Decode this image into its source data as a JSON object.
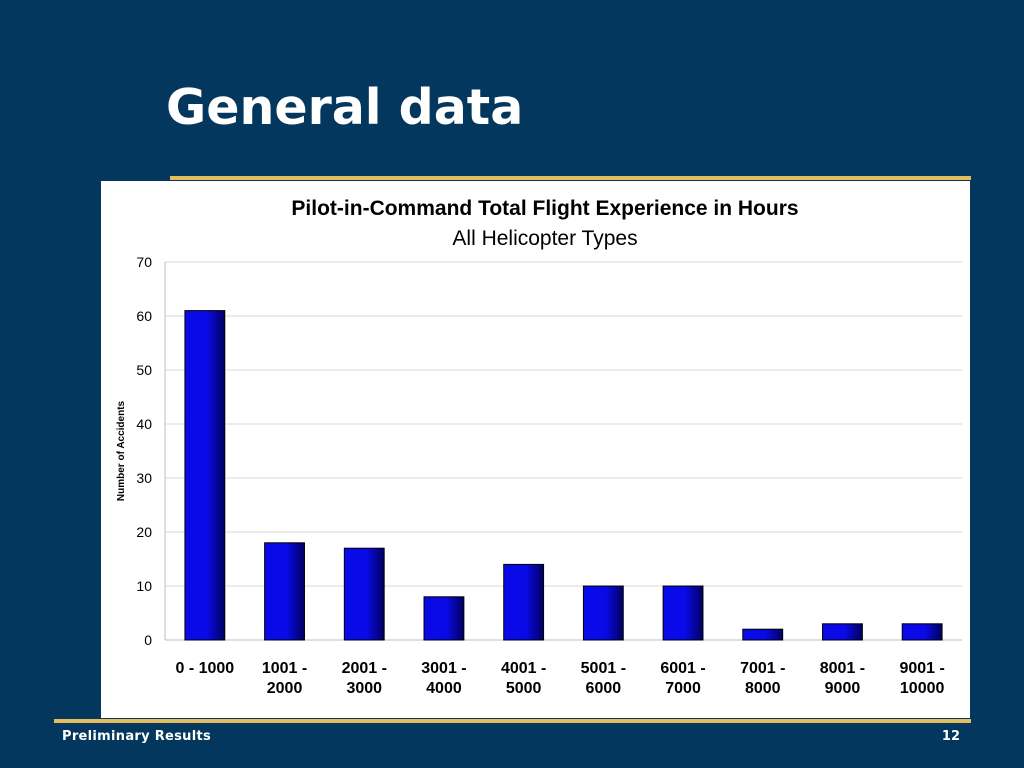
{
  "slide": {
    "title": "General data",
    "footer_left": "Preliminary Results",
    "page_number": "12"
  },
  "colors": {
    "background": "#04375e",
    "rule": "#e5bd5f",
    "bar_fill": "#0a0ae8",
    "bar_dark": "#000060",
    "gridline": "#d9d9d9"
  },
  "chart_data": {
    "type": "bar",
    "title": "Pilot-in-Command Total Flight Experience in Hours",
    "subtitle": "All Helicopter Types",
    "xlabel": "",
    "ylabel": "Number of Accidents",
    "ylim": [
      0,
      70
    ],
    "yticks": [
      0,
      10,
      20,
      30,
      40,
      50,
      60,
      70
    ],
    "grid": true,
    "legend": "none",
    "categories": [
      [
        "0 - 1000"
      ],
      [
        "1001 -",
        "2000"
      ],
      [
        "2001 -",
        "3000"
      ],
      [
        "3001 -",
        "4000"
      ],
      [
        "4001 -",
        "5000"
      ],
      [
        "5001 -",
        "6000"
      ],
      [
        "6001 -",
        "7000"
      ],
      [
        "7001 -",
        "8000"
      ],
      [
        "8001 -",
        "9000"
      ],
      [
        "9001 -",
        "10000"
      ]
    ],
    "values": [
      61,
      18,
      17,
      8,
      14,
      10,
      10,
      2,
      3,
      3
    ]
  }
}
